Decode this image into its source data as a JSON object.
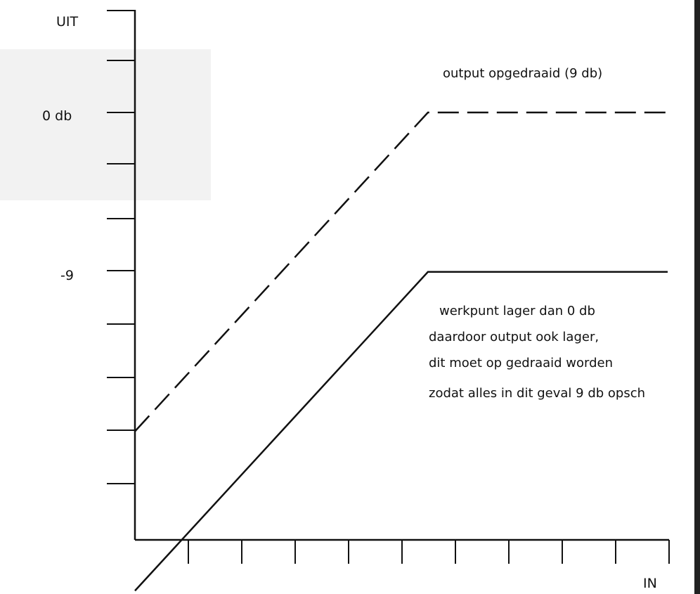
{
  "chart_data": {
    "type": "line",
    "ylabel": "UIT",
    "xlabel": "IN",
    "y_tick_labels": [
      "0 db",
      "-9"
    ],
    "series": [
      {
        "name": "output opgedraaid (9 db)",
        "style": "dashed",
        "points": [
          [
            0,
            -18
          ],
          [
            11,
            0
          ],
          [
            20,
            0
          ]
        ]
      },
      {
        "style": "solid",
        "points": [
          [
            0,
            -27
          ],
          [
            11,
            -9
          ],
          [
            20,
            -9
          ]
        ]
      }
    ],
    "annotations": {
      "dashed_label": "output opgedraaid (9 db)",
      "note_lines": [
        "werkpunt lager dan 0 db",
        "daardoor output ook lager,",
        "dit moet op gedraaid worden",
        "zodat alles in dit geval 9 db opsch"
      ]
    }
  }
}
